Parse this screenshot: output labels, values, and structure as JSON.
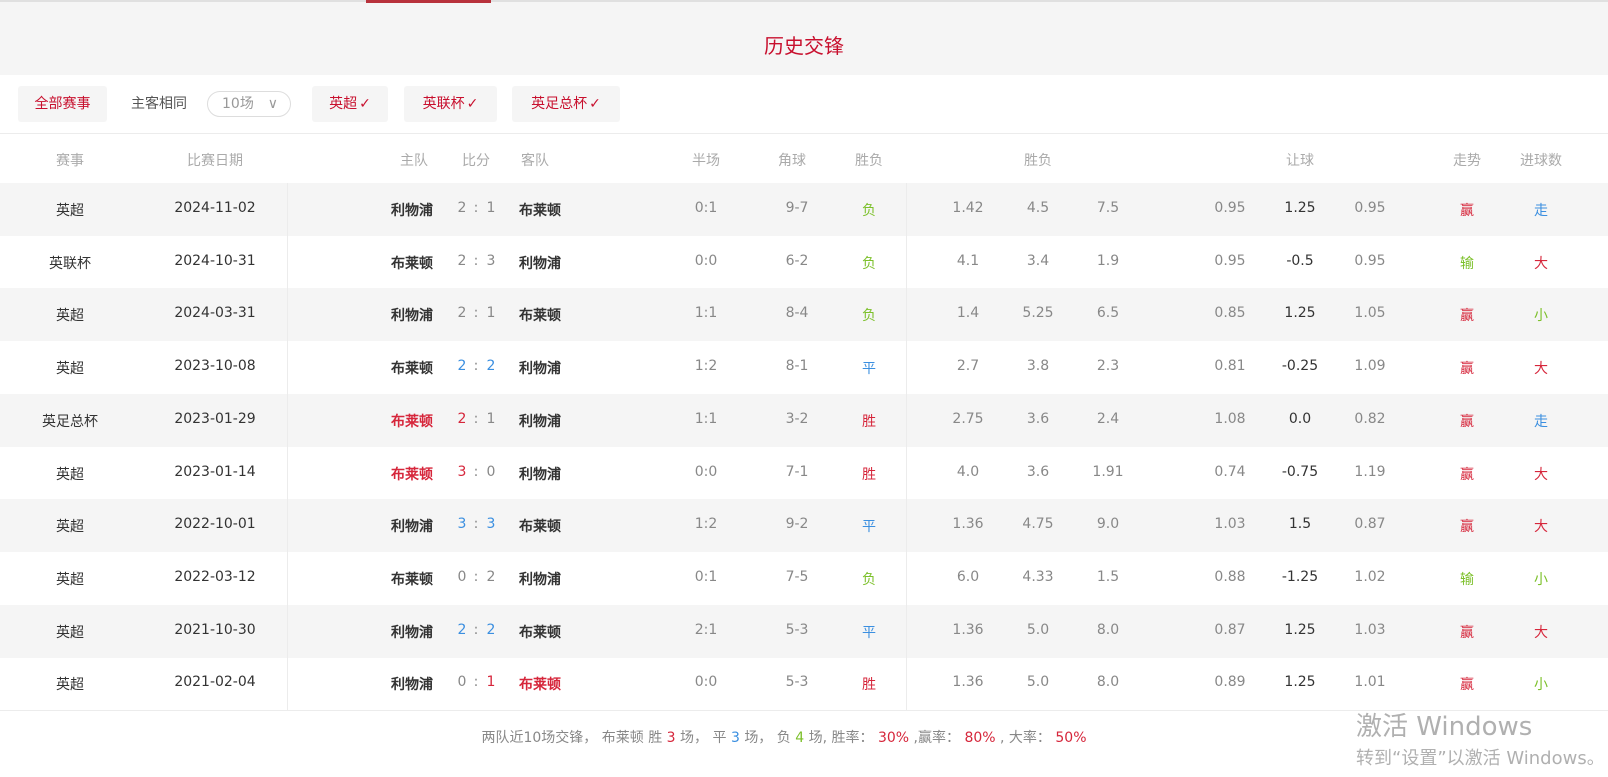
{
  "title": "历史交锋",
  "filters": {
    "all_label": "全部赛事",
    "same_home_away_label": "主客相同",
    "count_select": "10场",
    "leagues": [
      {
        "label": "英超",
        "checked": true
      },
      {
        "label": "英联杯",
        "checked": true
      },
      {
        "label": "英足总杯",
        "checked": true
      }
    ]
  },
  "columns": {
    "league": "赛事",
    "date": "比赛日期",
    "home": "主队",
    "score": "比分",
    "away": "客队",
    "half": "半场",
    "corners": "角球",
    "result": "胜负",
    "odds": "胜负",
    "handicap": "让球",
    "trend": "走势",
    "goals": "进球数"
  },
  "colors": {
    "red": "#d6263b",
    "blue": "#3b8fe0",
    "green": "#7cc02a",
    "accent": "#c8102e"
  },
  "rows": [
    {
      "league": "英超",
      "date": "2024-11-02",
      "home": "利物浦",
      "home_c": "team",
      "sh": "2",
      "sh_c": "gray",
      "sa": "1",
      "sa_c": "gray",
      "away": "布莱顿",
      "away_c": "team",
      "half": "0:1",
      "corners": "9-7",
      "result": "负",
      "result_c": "green",
      "o1": "1.42",
      "o2": "4.5",
      "o3": "7.5",
      "h1": "0.95",
      "h2": "1.25",
      "h3": "0.95",
      "trend": "赢",
      "trend_c": "red",
      "goals": "走",
      "goals_c": "blue"
    },
    {
      "league": "英联杯",
      "date": "2024-10-31",
      "home": "布莱顿",
      "home_c": "team",
      "sh": "2",
      "sh_c": "gray",
      "sa": "3",
      "sa_c": "gray",
      "away": "利物浦",
      "away_c": "team",
      "half": "0:0",
      "corners": "6-2",
      "result": "负",
      "result_c": "green",
      "o1": "4.1",
      "o2": "3.4",
      "o3": "1.9",
      "h1": "0.95",
      "h2": "-0.5",
      "h3": "0.95",
      "trend": "输",
      "trend_c": "green",
      "goals": "大",
      "goals_c": "red"
    },
    {
      "league": "英超",
      "date": "2024-03-31",
      "home": "利物浦",
      "home_c": "team",
      "sh": "2",
      "sh_c": "gray",
      "sa": "1",
      "sa_c": "gray",
      "away": "布莱顿",
      "away_c": "team",
      "half": "1:1",
      "corners": "8-4",
      "result": "负",
      "result_c": "green",
      "o1": "1.4",
      "o2": "5.25",
      "o3": "6.5",
      "h1": "0.85",
      "h2": "1.25",
      "h3": "1.05",
      "trend": "赢",
      "trend_c": "red",
      "goals": "小",
      "goals_c": "green"
    },
    {
      "league": "英超",
      "date": "2023-10-08",
      "home": "布莱顿",
      "home_c": "team",
      "sh": "2",
      "sh_c": "blue",
      "sa": "2",
      "sa_c": "blue",
      "away": "利物浦",
      "away_c": "team",
      "half": "1:2",
      "corners": "8-1",
      "result": "平",
      "result_c": "blue",
      "o1": "2.7",
      "o2": "3.8",
      "o3": "2.3",
      "h1": "0.81",
      "h2": "-0.25",
      "h3": "1.09",
      "trend": "赢",
      "trend_c": "red",
      "goals": "大",
      "goals_c": "red"
    },
    {
      "league": "英足总杯",
      "date": "2023-01-29",
      "home": "布莱顿",
      "home_c": "red",
      "sh": "2",
      "sh_c": "red",
      "sa": "1",
      "sa_c": "gray",
      "away": "利物浦",
      "away_c": "team",
      "half": "1:1",
      "corners": "3-2",
      "result": "胜",
      "result_c": "red",
      "o1": "2.75",
      "o2": "3.6",
      "o3": "2.4",
      "h1": "1.08",
      "h2": "0.0",
      "h3": "0.82",
      "trend": "赢",
      "trend_c": "red",
      "goals": "走",
      "goals_c": "blue"
    },
    {
      "league": "英超",
      "date": "2023-01-14",
      "home": "布莱顿",
      "home_c": "red",
      "sh": "3",
      "sh_c": "red",
      "sa": "0",
      "sa_c": "gray",
      "away": "利物浦",
      "away_c": "team",
      "half": "0:0",
      "corners": "7-1",
      "result": "胜",
      "result_c": "red",
      "o1": "4.0",
      "o2": "3.6",
      "o3": "1.91",
      "h1": "0.74",
      "h2": "-0.75",
      "h3": "1.19",
      "trend": "赢",
      "trend_c": "red",
      "goals": "大",
      "goals_c": "red"
    },
    {
      "league": "英超",
      "date": "2022-10-01",
      "home": "利物浦",
      "home_c": "team",
      "sh": "3",
      "sh_c": "blue",
      "sa": "3",
      "sa_c": "blue",
      "away": "布莱顿",
      "away_c": "team",
      "half": "1:2",
      "corners": "9-2",
      "result": "平",
      "result_c": "blue",
      "o1": "1.36",
      "o2": "4.75",
      "o3": "9.0",
      "h1": "1.03",
      "h2": "1.5",
      "h3": "0.87",
      "trend": "赢",
      "trend_c": "red",
      "goals": "大",
      "goals_c": "red"
    },
    {
      "league": "英超",
      "date": "2022-03-12",
      "home": "布莱顿",
      "home_c": "team",
      "sh": "0",
      "sh_c": "gray",
      "sa": "2",
      "sa_c": "gray",
      "away": "利物浦",
      "away_c": "team",
      "half": "0:1",
      "corners": "7-5",
      "result": "负",
      "result_c": "green",
      "o1": "6.0",
      "o2": "4.33",
      "o3": "1.5",
      "h1": "0.88",
      "h2": "-1.25",
      "h3": "1.02",
      "trend": "输",
      "trend_c": "green",
      "goals": "小",
      "goals_c": "green"
    },
    {
      "league": "英超",
      "date": "2021-10-30",
      "home": "利物浦",
      "home_c": "team",
      "sh": "2",
      "sh_c": "blue",
      "sa": "2",
      "sa_c": "blue",
      "away": "布莱顿",
      "away_c": "team",
      "half": "2:1",
      "corners": "5-3",
      "result": "平",
      "result_c": "blue",
      "o1": "1.36",
      "o2": "5.0",
      "o3": "8.0",
      "h1": "0.87",
      "h2": "1.25",
      "h3": "1.03",
      "trend": "赢",
      "trend_c": "red",
      "goals": "大",
      "goals_c": "red"
    },
    {
      "league": "英超",
      "date": "2021-02-04",
      "home": "利物浦",
      "home_c": "team",
      "sh": "0",
      "sh_c": "gray",
      "sa": "1",
      "sa_c": "red",
      "away": "布莱顿",
      "away_c": "red",
      "half": "0:0",
      "corners": "5-3",
      "result": "胜",
      "result_c": "red",
      "o1": "1.36",
      "o2": "5.0",
      "o3": "8.0",
      "h1": "0.89",
      "h2": "1.25",
      "h3": "1.01",
      "trend": "赢",
      "trend_c": "red",
      "goals": "小",
      "goals_c": "green"
    }
  ],
  "summary": {
    "prefix": "两队近10场交锋，  布莱顿 胜",
    "wins": "3",
    "t1": "场，  平",
    "draws": "3",
    "t2": "场，  负",
    "losses": "4",
    "t3": "场, 胜率：",
    "win_rate": "30%",
    "t4": ",赢率：",
    "cover_rate": "80%",
    "t5": ", 大率：",
    "over_rate": "50%"
  },
  "watermark": {
    "line1": "激活 Windows",
    "line2": "转到“设置”以激活 Windows。"
  }
}
